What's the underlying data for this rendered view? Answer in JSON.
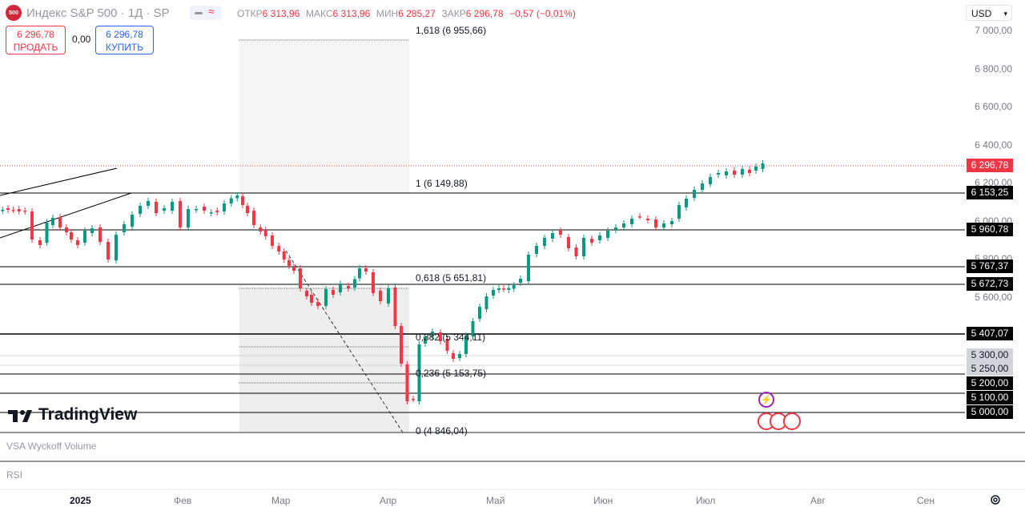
{
  "header": {
    "logo_text": "500",
    "title": "Индекс S&P 500 · 1Д · SP",
    "open_label": "ОТКР",
    "open_value": "6 313,96",
    "high_label": "МАКС",
    "high_value": "6 313,96",
    "low_label": "МИН",
    "low_value": "6 285,27",
    "close_label": "ЗАКР",
    "close_value": "6 296,78",
    "change": "−0,57 (−0,01%)"
  },
  "trade": {
    "sell_price": "6 296,78",
    "sell_label": "ПРОДАТЬ",
    "spread": "0,00",
    "buy_price": "6 296,78",
    "buy_label": "КУПИТЬ"
  },
  "currency": "USD",
  "price_axis": [
    "7 000,00",
    "6 800,00",
    "6 600,00",
    "6 400,00",
    "6 200,00",
    "6 000,00",
    "5 800,00",
    "5 600,00"
  ],
  "price_tags": {
    "current": "6 296,78",
    "h1": "6 153,25",
    "h2": "5 960,78",
    "h3": "5 767,37",
    "h4": "5 672,73",
    "h5": "5 407,07",
    "g1": "5 300,00",
    "g2": "5 250,00",
    "b1": "5 200,00",
    "b2": "5 100,00",
    "b3": "5 000,00"
  },
  "fib": {
    "l1618": "1,618 (6 955,66)",
    "l1": "1 (6 149,88)",
    "l0618": "0,618 (5 651,81)",
    "l0382": "0,382 (5 344,11)",
    "l0236": "0,236 (5 153,75)",
    "l0": "0 (4 846,04)"
  },
  "panes": {
    "volume": "VSA Wyckoff Volume",
    "rsi": "RSI"
  },
  "months": [
    "2025",
    "Фев",
    "Мар",
    "Апр",
    "Май",
    "Июн",
    "Июл",
    "Авг",
    "Сен"
  ],
  "brand": "TradingView",
  "colors": {
    "up": "#089981",
    "down": "#f23645",
    "accent": "#2962ff"
  },
  "icons": [
    "lightning-icon",
    "us-flag-icon",
    "settings-icon"
  ]
}
